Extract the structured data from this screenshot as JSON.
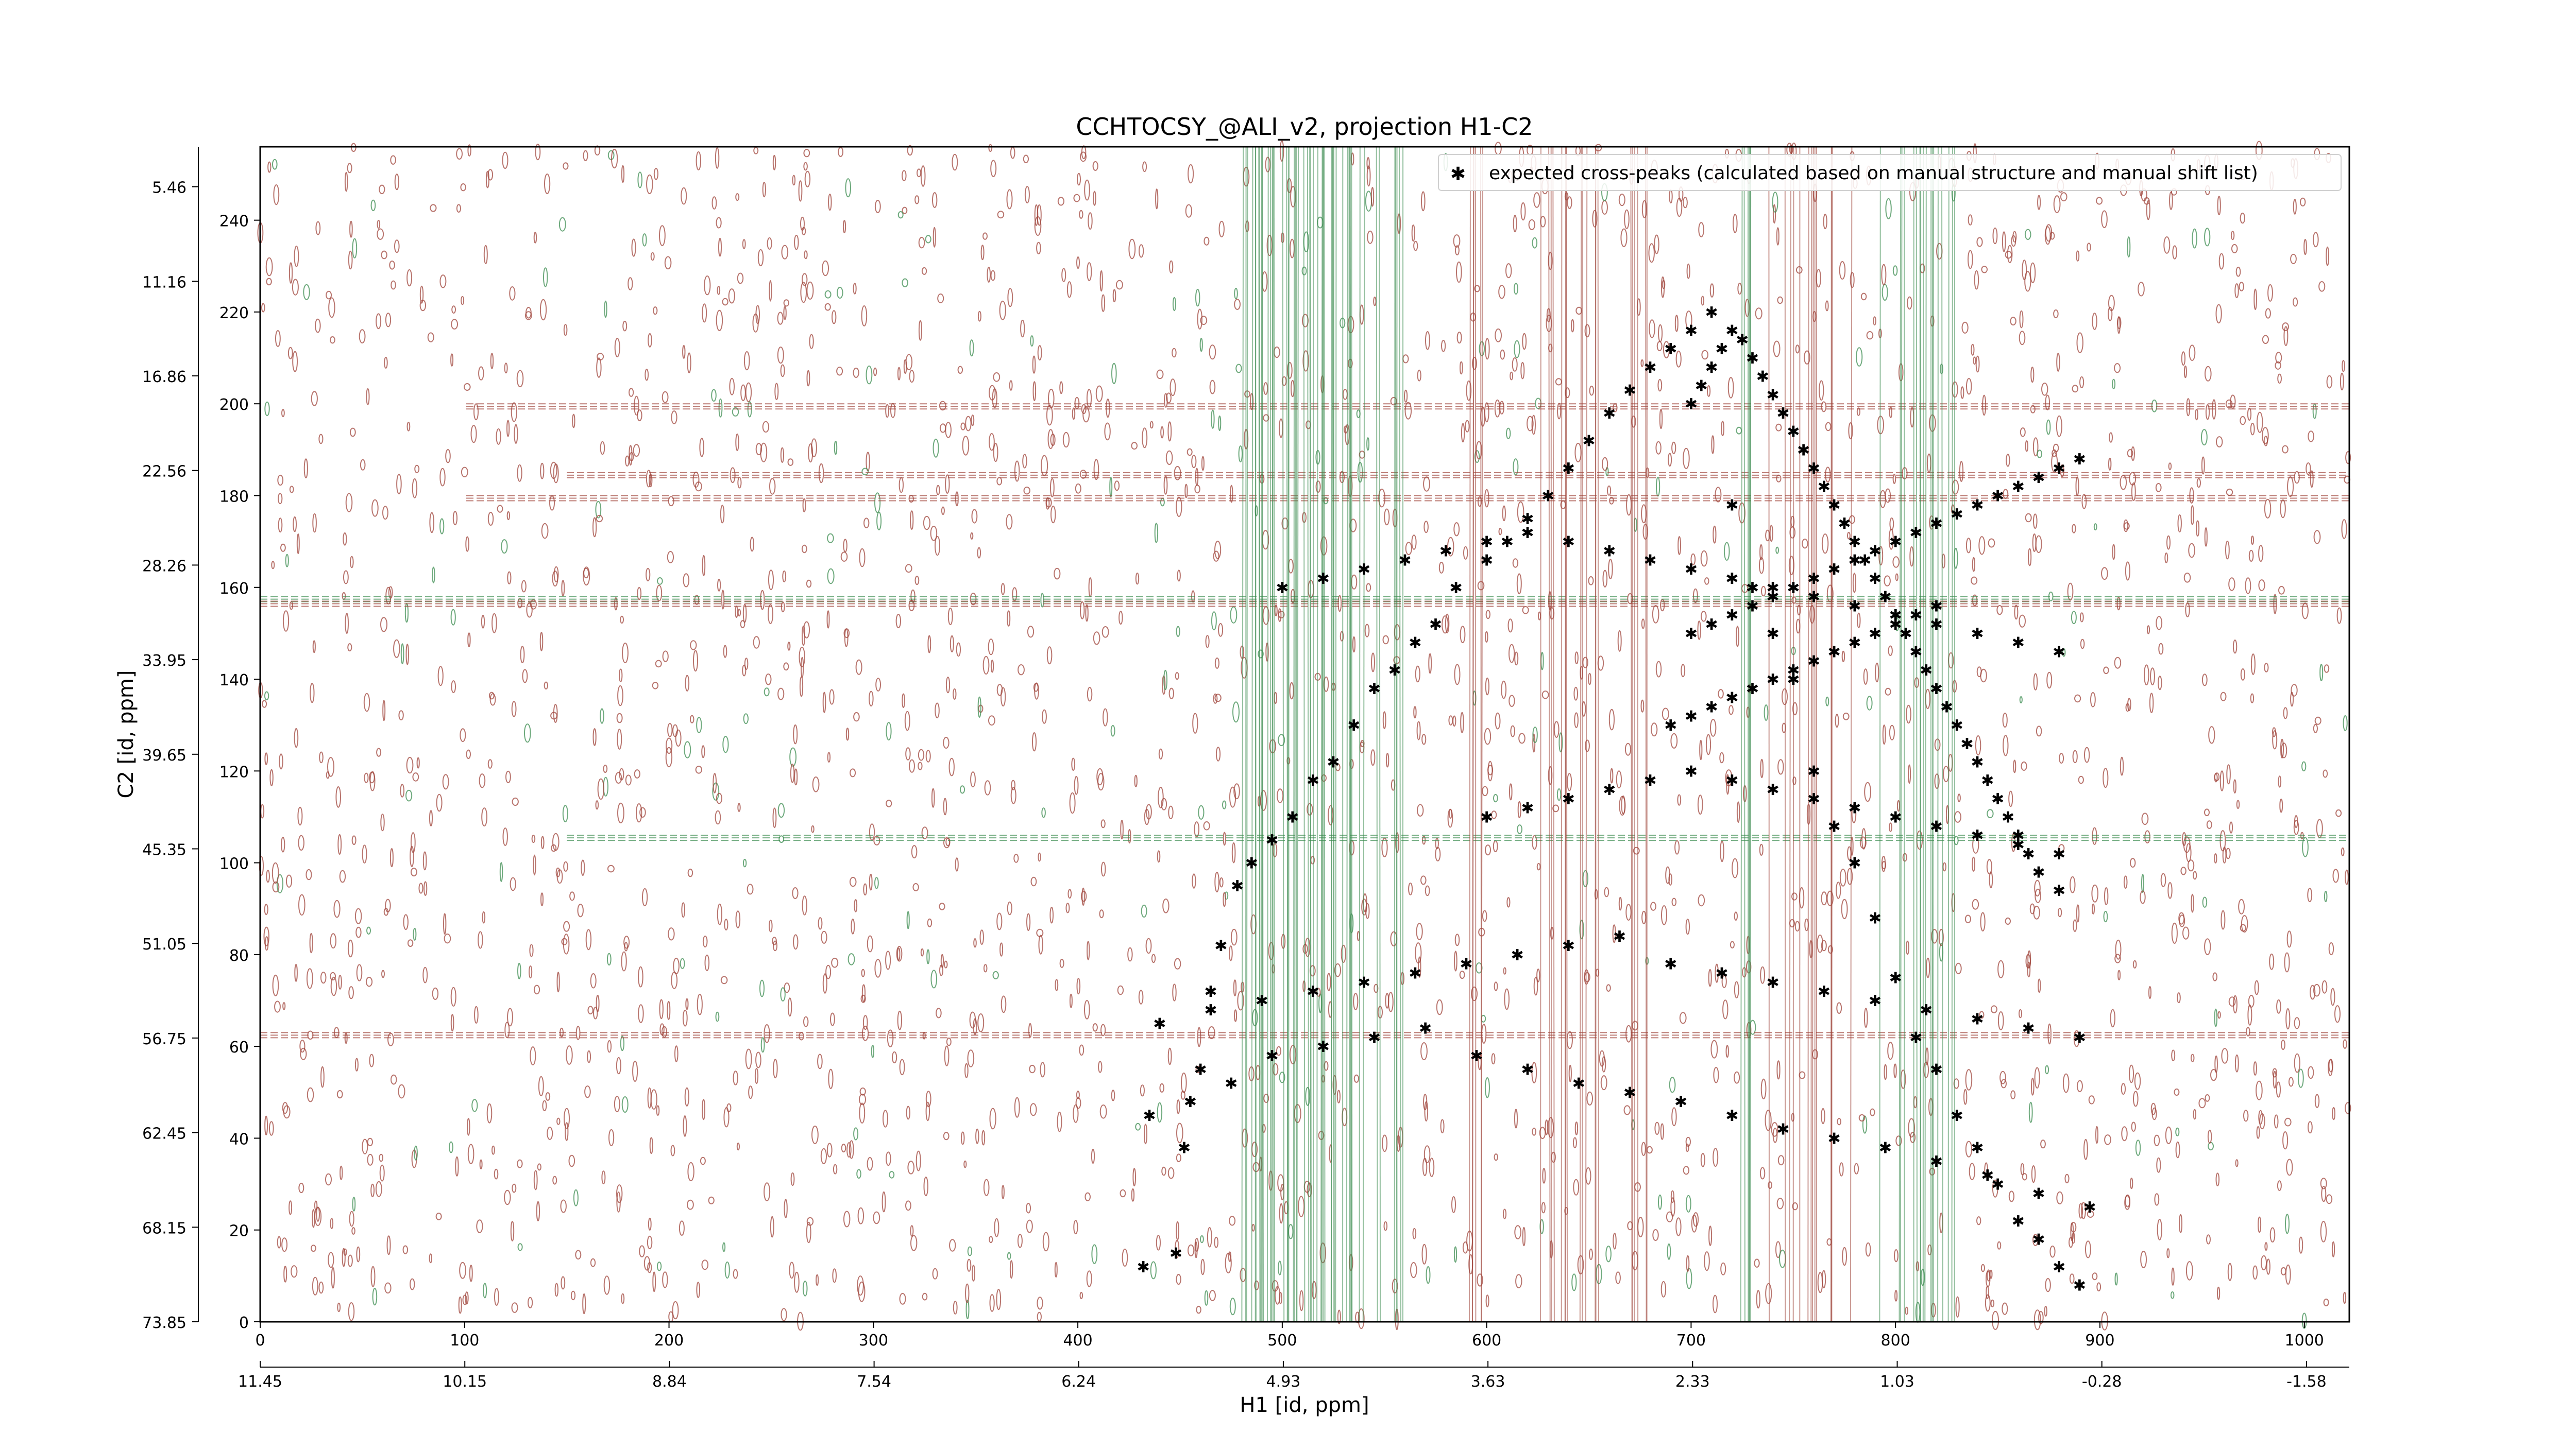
{
  "chart_data": {
    "type": "scatter",
    "title": "CCHTOCSY_@ALI_v2, projection H1-C2",
    "xlabel": "H1 [id, ppm]",
    "ylabel": "C2 [id, ppm]",
    "xlim": [
      0,
      1022
    ],
    "ylim": [
      0,
      256
    ],
    "x_ticks": [
      0,
      100,
      200,
      300,
      400,
      500,
      600,
      700,
      800,
      900,
      1000
    ],
    "y_ticks": [
      0,
      20,
      40,
      60,
      80,
      100,
      120,
      140,
      160,
      180,
      200,
      220,
      240
    ],
    "x_ppm_ticks": [
      "11.45",
      "10.15",
      "8.84",
      "7.54",
      "6.24",
      "4.93",
      "3.63",
      "2.33",
      "1.03",
      "-0.28",
      "-1.58"
    ],
    "y_ppm_ticks": [
      "73.85",
      "68.15",
      "62.45",
      "56.75",
      "51.05",
      "45.35",
      "39.65",
      "33.95",
      "28.26",
      "22.56",
      "16.86",
      "11.16",
      "5.46"
    ],
    "legend": {
      "position": "top-right",
      "entries": [
        "expected cross-peaks (calculated based on manual structure and manual shift list)"
      ]
    },
    "colors": {
      "peaks": "#0000ff",
      "positive_contour": "#a0463c",
      "negative_contour": "#3c8c50"
    },
    "series": [
      {
        "name": "expected cross-peaks (calculated based on manual structure and manual shift list)",
        "x": [
          432,
          448,
          452,
          460,
          465,
          470,
          478,
          485,
          495,
          505,
          515,
          525,
          535,
          545,
          555,
          565,
          575,
          585,
          600,
          610,
          620,
          630,
          640,
          650,
          660,
          670,
          680,
          690,
          700,
          710,
          720,
          730,
          740,
          750,
          760,
          770,
          780,
          790,
          800,
          810,
          820,
          830,
          840,
          850,
          860,
          870,
          880,
          890,
          435,
          455,
          475,
          495,
          520,
          545,
          570,
          595,
          620,
          645,
          670,
          695,
          720,
          745,
          770,
          795,
          820,
          845,
          870,
          895,
          440,
          465,
          490,
          515,
          540,
          565,
          590,
          615,
          640,
          665,
          690,
          715,
          740,
          765,
          790,
          815,
          840,
          865,
          890,
          600,
          620,
          640,
          660,
          680,
          700,
          720,
          740,
          760,
          780,
          800,
          820,
          840,
          860,
          880,
          500,
          520,
          540,
          560,
          580,
          600,
          620,
          640,
          660,
          680,
          700,
          720,
          740,
          760,
          780,
          800,
          820,
          840,
          860,
          880,
          700,
          710,
          720,
          730,
          740,
          750,
          760,
          770,
          780,
          790,
          800,
          810,
          820,
          830,
          840,
          850,
          860,
          870,
          880,
          890,
          690,
          700,
          710,
          720,
          730,
          740,
          750,
          760,
          770,
          780,
          790,
          800,
          810,
          820,
          700,
          705,
          710,
          715,
          720,
          725,
          730,
          735,
          740,
          745,
          750,
          755,
          760,
          765,
          770,
          775,
          780,
          785,
          790,
          795,
          800,
          805,
          810,
          815,
          820,
          825,
          830,
          835,
          840,
          845,
          850,
          855,
          860,
          865,
          870,
          880
        ],
        "y": [
          12,
          15,
          38,
          55,
          72,
          82,
          95,
          100,
          105,
          110,
          118,
          122,
          130,
          138,
          142,
          148,
          152,
          160,
          166,
          170,
          175,
          180,
          186,
          192,
          198,
          203,
          208,
          212,
          216,
          220,
          178,
          160,
          150,
          140,
          120,
          108,
          100,
          88,
          75,
          62,
          55,
          45,
          38,
          30,
          22,
          18,
          12,
          8,
          45,
          48,
          52,
          58,
          60,
          62,
          64,
          58,
          55,
          52,
          50,
          48,
          45,
          42,
          40,
          38,
          35,
          32,
          28,
          25,
          65,
          68,
          70,
          72,
          74,
          76,
          78,
          80,
          82,
          84,
          78,
          76,
          74,
          72,
          70,
          68,
          66,
          64,
          62,
          110,
          112,
          114,
          116,
          118,
          120,
          118,
          116,
          114,
          112,
          110,
          108,
          106,
          104,
          102,
          160,
          162,
          164,
          166,
          168,
          170,
          172,
          170,
          168,
          166,
          164,
          162,
          160,
          158,
          156,
          154,
          152,
          150,
          148,
          146,
          150,
          152,
          154,
          156,
          158,
          160,
          162,
          164,
          166,
          168,
          170,
          172,
          174,
          176,
          178,
          180,
          182,
          184,
          186,
          188,
          130,
          132,
          134,
          136,
          138,
          140,
          142,
          144,
          146,
          148,
          150,
          152,
          154,
          156,
          200,
          204,
          208,
          212,
          216,
          214,
          210,
          206,
          202,
          198,
          194,
          190,
          186,
          182,
          178,
          174,
          170,
          166,
          162,
          158,
          154,
          150,
          146,
          142,
          138,
          134,
          130,
          126,
          122,
          118,
          114,
          110,
          106,
          102,
          98,
          94
        ]
      }
    ]
  }
}
